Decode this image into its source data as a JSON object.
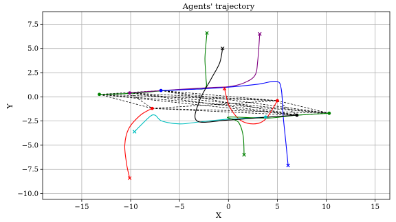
{
  "chart_data": {
    "type": "line",
    "title": "Agents' trajectory",
    "xlabel": "X",
    "ylabel": "Y",
    "xlim": [
      -19,
      16.5
    ],
    "ylim": [
      -10.6,
      8.8
    ],
    "grid": true,
    "xticks": [
      -15,
      -10,
      -5,
      0,
      5,
      10,
      15
    ],
    "yticks": [
      7.5,
      5.0,
      2.5,
      0.0,
      -2.5,
      -5.0,
      -7.5,
      -10.0
    ],
    "xtick_labels": [
      "−15",
      "−10",
      "−5",
      "0",
      "5",
      "10",
      "15"
    ],
    "ytick_labels": [
      "7.5",
      "5.0",
      "2.5",
      "0.0",
      "−2.5",
      "−5.0",
      "−7.5",
      "−10.0"
    ],
    "series": [
      {
        "color": "#008000",
        "start": [
          -13.2,
          0.25
        ],
        "end": [
          -2.2,
          6.6
        ],
        "points": [
          [
            -13.2,
            0.25
          ],
          [
            -10,
            0.35
          ],
          [
            -7,
            0.6
          ],
          [
            -4,
            0.8
          ],
          [
            -2.4,
            0.9
          ],
          [
            -2.3,
            2
          ],
          [
            -2.4,
            4
          ],
          [
            -2.2,
            6.6
          ]
        ]
      },
      {
        "color": "#800080",
        "start": [
          -10.1,
          0.4
        ],
        "end": [
          3.2,
          6.5
        ],
        "points": [
          [
            -10.1,
            0.4
          ],
          [
            -6,
            0.7
          ],
          [
            -2,
            0.95
          ],
          [
            0,
            1.05
          ],
          [
            1.5,
            1.4
          ],
          [
            2.7,
            2.2
          ],
          [
            3,
            3.8
          ],
          [
            3.2,
            6.5
          ]
        ]
      },
      {
        "color": "#0000ff",
        "start": [
          -6.9,
          0.65
        ],
        "end": [
          6.1,
          -7.1
        ],
        "points": [
          [
            -6.9,
            0.65
          ],
          [
            -3,
            0.8
          ],
          [
            0,
            1.0
          ],
          [
            3,
            1.3
          ],
          [
            4.9,
            1.6
          ],
          [
            5.4,
            0.8
          ],
          [
            5.6,
            -2
          ],
          [
            5.9,
            -5
          ],
          [
            6.1,
            -7.1
          ]
        ]
      },
      {
        "color": "#ff0000",
        "start": [
          -7.8,
          -1.2
        ],
        "end": [
          -10.1,
          -8.4
        ],
        "points": [
          [
            -7.8,
            -1.2
          ],
          [
            -9,
            -1.9
          ],
          [
            -10.2,
            -3.3
          ],
          [
            -10.6,
            -5
          ],
          [
            -10.4,
            -7
          ],
          [
            -10.1,
            -8.4
          ]
        ]
      },
      {
        "color": "#ff0000",
        "start": [
          5.0,
          -0.4
        ],
        "end": [
          -0.4,
          0.85
        ],
        "points": [
          [
            5.0,
            -0.4
          ],
          [
            3.8,
            -2.3
          ],
          [
            2.6,
            -2.8
          ],
          [
            1.2,
            -2.4
          ],
          [
            0.1,
            -1
          ],
          [
            -0.3,
            0.4
          ],
          [
            -0.4,
            0.85
          ]
        ]
      },
      {
        "color": "#00bfbf",
        "start": [
          3.8,
          -2.1
        ],
        "end": [
          -9.6,
          -3.6
        ],
        "points": [
          [
            3.8,
            -2.1
          ],
          [
            0,
            -2.3
          ],
          [
            -3,
            -2.6
          ],
          [
            -5,
            -2.8
          ],
          [
            -6.8,
            -2.5
          ],
          [
            -7.5,
            -1.9
          ],
          [
            -8.1,
            -2.1
          ],
          [
            -9.6,
            -3.6
          ]
        ]
      },
      {
        "color": "#008000",
        "start": [
          10.3,
          -1.7
        ],
        "end": [
          1.6,
          -6.0
        ],
        "points": [
          [
            10.3,
            -1.7
          ],
          [
            7,
            -1.9
          ],
          [
            4,
            -2.2
          ],
          [
            0,
            -2.1
          ],
          [
            1,
            -2.6
          ],
          [
            1.5,
            -4
          ],
          [
            1.6,
            -6.0
          ]
        ]
      },
      {
        "color": "#000000",
        "start": [
          7.0,
          -1.9
        ],
        "end": [
          -0.6,
          5.0
        ],
        "points": [
          [
            7.0,
            -1.9
          ],
          [
            4,
            -2.1
          ],
          [
            0,
            -2.4
          ],
          [
            -3.2,
            -2.5
          ],
          [
            -3,
            -0.5
          ],
          [
            -1.8,
            1.8
          ],
          [
            -0.9,
            3.5
          ],
          [
            -0.6,
            5.0
          ]
        ]
      }
    ],
    "formation_edges": [
      [
        [
          -13.2,
          0.25
        ],
        [
          5.0,
          -0.4
        ]
      ],
      [
        [
          -13.2,
          0.25
        ],
        [
          7.0,
          -1.9
        ]
      ],
      [
        [
          -13.2,
          0.25
        ],
        [
          -7.8,
          -1.2
        ]
      ],
      [
        [
          -13.2,
          0.25
        ],
        [
          -6.9,
          0.65
        ]
      ],
      [
        [
          -10.1,
          0.4
        ],
        [
          5.0,
          -0.4
        ]
      ],
      [
        [
          -10.1,
          0.4
        ],
        [
          7.0,
          -1.9
        ]
      ],
      [
        [
          -10.1,
          0.4
        ],
        [
          -7.8,
          -1.2
        ]
      ],
      [
        [
          -6.9,
          0.65
        ],
        [
          5.0,
          -0.4
        ]
      ],
      [
        [
          -6.9,
          0.65
        ],
        [
          10.3,
          -1.7
        ]
      ],
      [
        [
          -6.9,
          0.65
        ],
        [
          7.0,
          -1.9
        ]
      ],
      [
        [
          -7.8,
          -1.2
        ],
        [
          5.0,
          -0.4
        ]
      ],
      [
        [
          -7.8,
          -1.2
        ],
        [
          7.0,
          -1.9
        ]
      ],
      [
        [
          -7.8,
          -1.2
        ],
        [
          10.3,
          -1.7
        ]
      ],
      [
        [
          5.0,
          -0.4
        ],
        [
          10.3,
          -1.7
        ]
      ],
      [
        [
          5.0,
          -0.4
        ],
        [
          7.0,
          -1.9
        ]
      ],
      [
        [
          7.0,
          -1.9
        ],
        [
          10.3,
          -1.7
        ]
      ],
      [
        [
          -10.1,
          0.4
        ],
        [
          10.3,
          -1.7
        ]
      ],
      [
        [
          -13.2,
          0.25
        ],
        [
          10.3,
          -1.7
        ]
      ]
    ]
  }
}
